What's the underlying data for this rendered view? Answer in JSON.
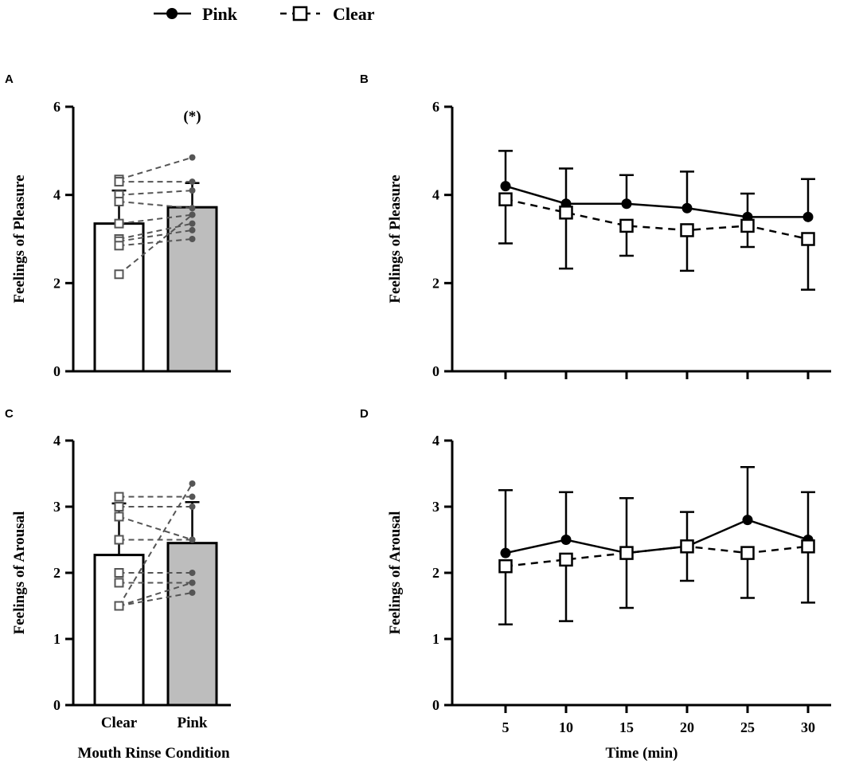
{
  "legend": {
    "entries": [
      {
        "name": "Pink",
        "marker": "filled-circle",
        "line": "solid",
        "color": "#000000"
      },
      {
        "name": "Clear",
        "marker": "open-square",
        "line": "dashed",
        "color": "#000000"
      }
    ]
  },
  "colors": {
    "pink_bar": "#bdbdbd",
    "clear_bar": "#ffffff",
    "individual_lines": "#555555"
  },
  "chart_data": [
    {
      "panel": "A",
      "type": "bar",
      "categories": [
        "Clear",
        "Pink"
      ],
      "values": [
        3.35,
        3.72
      ],
      "errors": [
        0.75,
        0.55
      ],
      "ylabel": "Feelings of Pleasure",
      "xlabel": "",
      "show_category_labels": false,
      "ylim": [
        0,
        6
      ],
      "yticks": [
        0,
        2,
        4,
        6
      ],
      "annotation": "(*)",
      "individual_pairs": [
        [
          4.35,
          4.85
        ],
        [
          4.3,
          4.3
        ],
        [
          4.0,
          4.1
        ],
        [
          3.85,
          3.7
        ],
        [
          3.35,
          3.55
        ],
        [
          3.0,
          3.35
        ],
        [
          2.95,
          3.2
        ],
        [
          2.85,
          3.0
        ],
        [
          2.2,
          3.55
        ]
      ]
    },
    {
      "panel": "B",
      "type": "line",
      "x": [
        5,
        10,
        15,
        20,
        25,
        30
      ],
      "series": [
        {
          "name": "Pink",
          "values": [
            4.2,
            3.8,
            3.8,
            3.7,
            3.5,
            3.5
          ],
          "errors": [
            0.8,
            0.8,
            0.65,
            0.83,
            0.53,
            0.86
          ]
        },
        {
          "name": "Clear",
          "values": [
            3.9,
            3.6,
            3.3,
            3.2,
            3.3,
            3.0
          ],
          "errors": [
            1.0,
            1.27,
            0.68,
            0.92,
            0.48,
            1.15
          ]
        }
      ],
      "ylabel": "Feelings of Pleasure",
      "xlabel": "",
      "show_xticks": false,
      "ylim": [
        0,
        6
      ],
      "yticks": [
        0,
        2,
        4,
        6
      ]
    },
    {
      "panel": "C",
      "type": "bar",
      "categories": [
        "Clear",
        "Pink"
      ],
      "values": [
        2.27,
        2.45
      ],
      "errors": [
        0.78,
        0.62
      ],
      "ylabel": "Feelings of Arousal",
      "xlabel": "Mouth Rinse Condition",
      "show_category_labels": true,
      "ylim": [
        0,
        4
      ],
      "yticks": [
        0,
        1,
        2,
        3,
        4
      ],
      "individual_pairs": [
        [
          3.15,
          3.15
        ],
        [
          3.0,
          3.0
        ],
        [
          2.85,
          2.5
        ],
        [
          2.5,
          2.5
        ],
        [
          2.0,
          2.0
        ],
        [
          1.85,
          1.85
        ],
        [
          1.5,
          3.35
        ],
        [
          1.5,
          1.85
        ],
        [
          1.5,
          1.7
        ]
      ]
    },
    {
      "panel": "D",
      "type": "line",
      "x": [
        5,
        10,
        15,
        20,
        25,
        30
      ],
      "series": [
        {
          "name": "Pink",
          "values": [
            2.3,
            2.5,
            2.3,
            2.4,
            2.8,
            2.5
          ],
          "errors": [
            0.95,
            0.72,
            0.83,
            0.52,
            0.8,
            0.72
          ]
        },
        {
          "name": "Clear",
          "values": [
            2.1,
            2.2,
            2.3,
            2.4,
            2.3,
            2.4
          ],
          "errors": [
            0.88,
            0.93,
            0.83,
            0.52,
            0.68,
            0.85
          ]
        }
      ],
      "ylabel": "Feelings of Arousal",
      "xlabel": "Time (min)",
      "show_xticks": true,
      "ylim": [
        0,
        4
      ],
      "yticks": [
        0,
        1,
        2,
        3,
        4
      ]
    }
  ]
}
